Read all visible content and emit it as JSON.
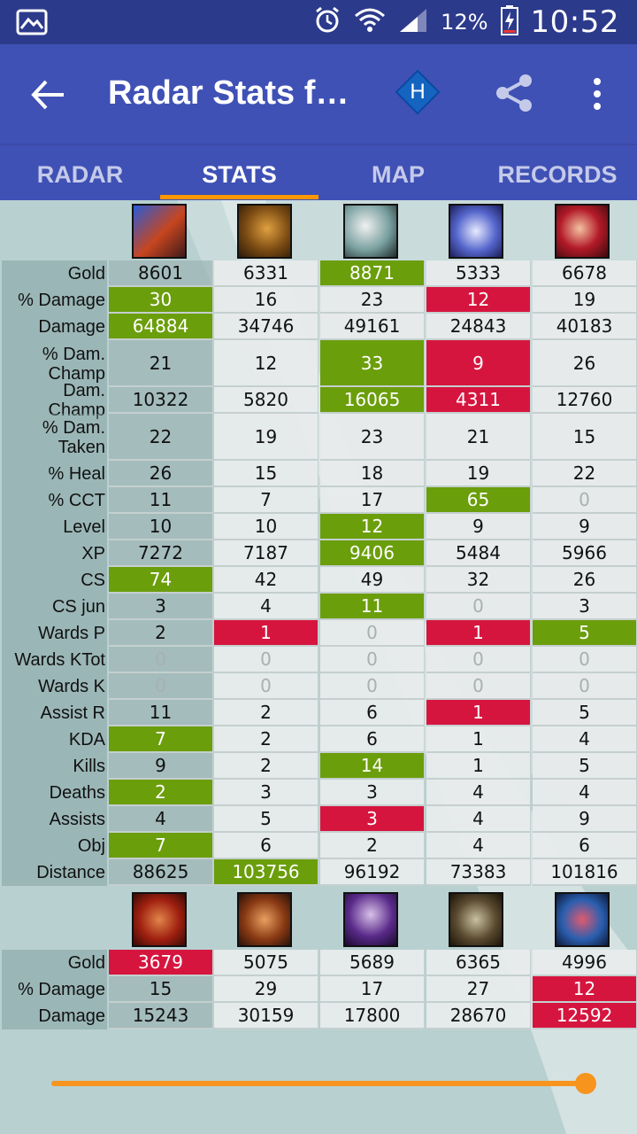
{
  "status_bar": {
    "battery": "12%",
    "time": "10:52"
  },
  "app_bar": {
    "title": "Radar Stats fo…",
    "badge": "H"
  },
  "tabs": [
    "RADAR",
    "STATS",
    "MAP",
    "RECORDS"
  ],
  "team1": {
    "rows": [
      {
        "label": "Gold",
        "values": [
          "8601",
          "6331",
          "8871",
          "5333",
          "6678"
        ],
        "hl": [
          "",
          "",
          "g",
          "",
          ""
        ]
      },
      {
        "label": "% Damage",
        "values": [
          "30",
          "16",
          "23",
          "12",
          "19"
        ],
        "hl": [
          "g",
          "",
          "",
          "r",
          ""
        ]
      },
      {
        "label": "Damage",
        "values": [
          "64884",
          "34746",
          "49161",
          "24843",
          "40183"
        ],
        "hl": [
          "g",
          "",
          "",
          "",
          ""
        ]
      },
      {
        "label": "% Dam.\nChamp",
        "values": [
          "21",
          "12",
          "33",
          "9",
          "26"
        ],
        "hl": [
          "",
          "",
          "g",
          "r",
          ""
        ],
        "tall": true
      },
      {
        "label": "Dam. Champ",
        "values": [
          "10322",
          "5820",
          "16065",
          "4311",
          "12760"
        ],
        "hl": [
          "",
          "",
          "g",
          "r",
          ""
        ]
      },
      {
        "label": "% Dam.\nTaken",
        "values": [
          "22",
          "19",
          "23",
          "21",
          "15"
        ],
        "hl": [
          "",
          "",
          "",
          "",
          ""
        ],
        "tall": true
      },
      {
        "label": "% Heal",
        "values": [
          "26",
          "15",
          "18",
          "19",
          "22"
        ],
        "hl": [
          "",
          "",
          "",
          "",
          ""
        ]
      },
      {
        "label": "% CCT",
        "values": [
          "11",
          "7",
          "17",
          "65",
          "0"
        ],
        "hl": [
          "",
          "",
          "",
          "g",
          ""
        ]
      },
      {
        "label": "Level",
        "values": [
          "10",
          "10",
          "12",
          "9",
          "9"
        ],
        "hl": [
          "",
          "",
          "g",
          "",
          ""
        ]
      },
      {
        "label": "XP",
        "values": [
          "7272",
          "7187",
          "9406",
          "5484",
          "5966"
        ],
        "hl": [
          "",
          "",
          "g",
          "",
          ""
        ]
      },
      {
        "label": "CS",
        "values": [
          "74",
          "42",
          "49",
          "32",
          "26"
        ],
        "hl": [
          "g",
          "",
          "",
          "",
          ""
        ]
      },
      {
        "label": "CS jun",
        "values": [
          "3",
          "4",
          "11",
          "0",
          "3"
        ],
        "hl": [
          "",
          "",
          "g",
          "",
          ""
        ]
      },
      {
        "label": "Wards P",
        "values": [
          "2",
          "1",
          "0",
          "1",
          "5"
        ],
        "hl": [
          "",
          "r",
          "",
          "r",
          "g"
        ]
      },
      {
        "label": "Wards KTot",
        "values": [
          "0",
          "0",
          "0",
          "0",
          "0"
        ],
        "hl": [
          "",
          "",
          "",
          "",
          ""
        ]
      },
      {
        "label": "Wards K",
        "values": [
          "0",
          "0",
          "0",
          "0",
          "0"
        ],
        "hl": [
          "",
          "",
          "",
          "",
          ""
        ]
      },
      {
        "label": "Assist R",
        "values": [
          "11",
          "2",
          "6",
          "1",
          "5"
        ],
        "hl": [
          "",
          "",
          "",
          "r",
          ""
        ]
      },
      {
        "label": "KDA",
        "values": [
          "7",
          "2",
          "6",
          "1",
          "4"
        ],
        "hl": [
          "g",
          "",
          "",
          "",
          ""
        ]
      },
      {
        "label": "Kills",
        "values": [
          "9",
          "2",
          "14",
          "1",
          "5"
        ],
        "hl": [
          "",
          "",
          "g",
          "",
          ""
        ]
      },
      {
        "label": "Deaths",
        "values": [
          "2",
          "3",
          "3",
          "4",
          "4"
        ],
        "hl": [
          "g",
          "",
          "",
          "",
          ""
        ]
      },
      {
        "label": "Assists",
        "values": [
          "4",
          "5",
          "3",
          "4",
          "9"
        ],
        "hl": [
          "",
          "",
          "r",
          "",
          ""
        ]
      },
      {
        "label": "Obj",
        "values": [
          "7",
          "6",
          "2",
          "4",
          "6"
        ],
        "hl": [
          "g",
          "",
          "",
          "",
          ""
        ]
      },
      {
        "label": "Distance",
        "values": [
          "88625",
          "103756",
          "96192",
          "73383",
          "101816"
        ],
        "hl": [
          "",
          "g",
          "",
          "",
          ""
        ]
      }
    ]
  },
  "team2": {
    "rows": [
      {
        "label": "Gold",
        "values": [
          "3679",
          "5075",
          "5689",
          "6365",
          "4996"
        ],
        "hl": [
          "r",
          "",
          "",
          "",
          ""
        ]
      },
      {
        "label": "% Damage",
        "values": [
          "15",
          "29",
          "17",
          "27",
          "12"
        ],
        "hl": [
          "",
          "",
          "",
          "",
          "r"
        ]
      },
      {
        "label": "Damage",
        "values": [
          "15243",
          "30159",
          "17800",
          "28670",
          "12592"
        ],
        "hl": [
          "",
          "",
          "",
          "",
          "r"
        ]
      }
    ]
  },
  "colors": {
    "primary": "#3f51b5",
    "status": "#2c3a8c",
    "accent": "#ff9800",
    "good": "#6b9e0b",
    "bad": "#d6153f"
  }
}
